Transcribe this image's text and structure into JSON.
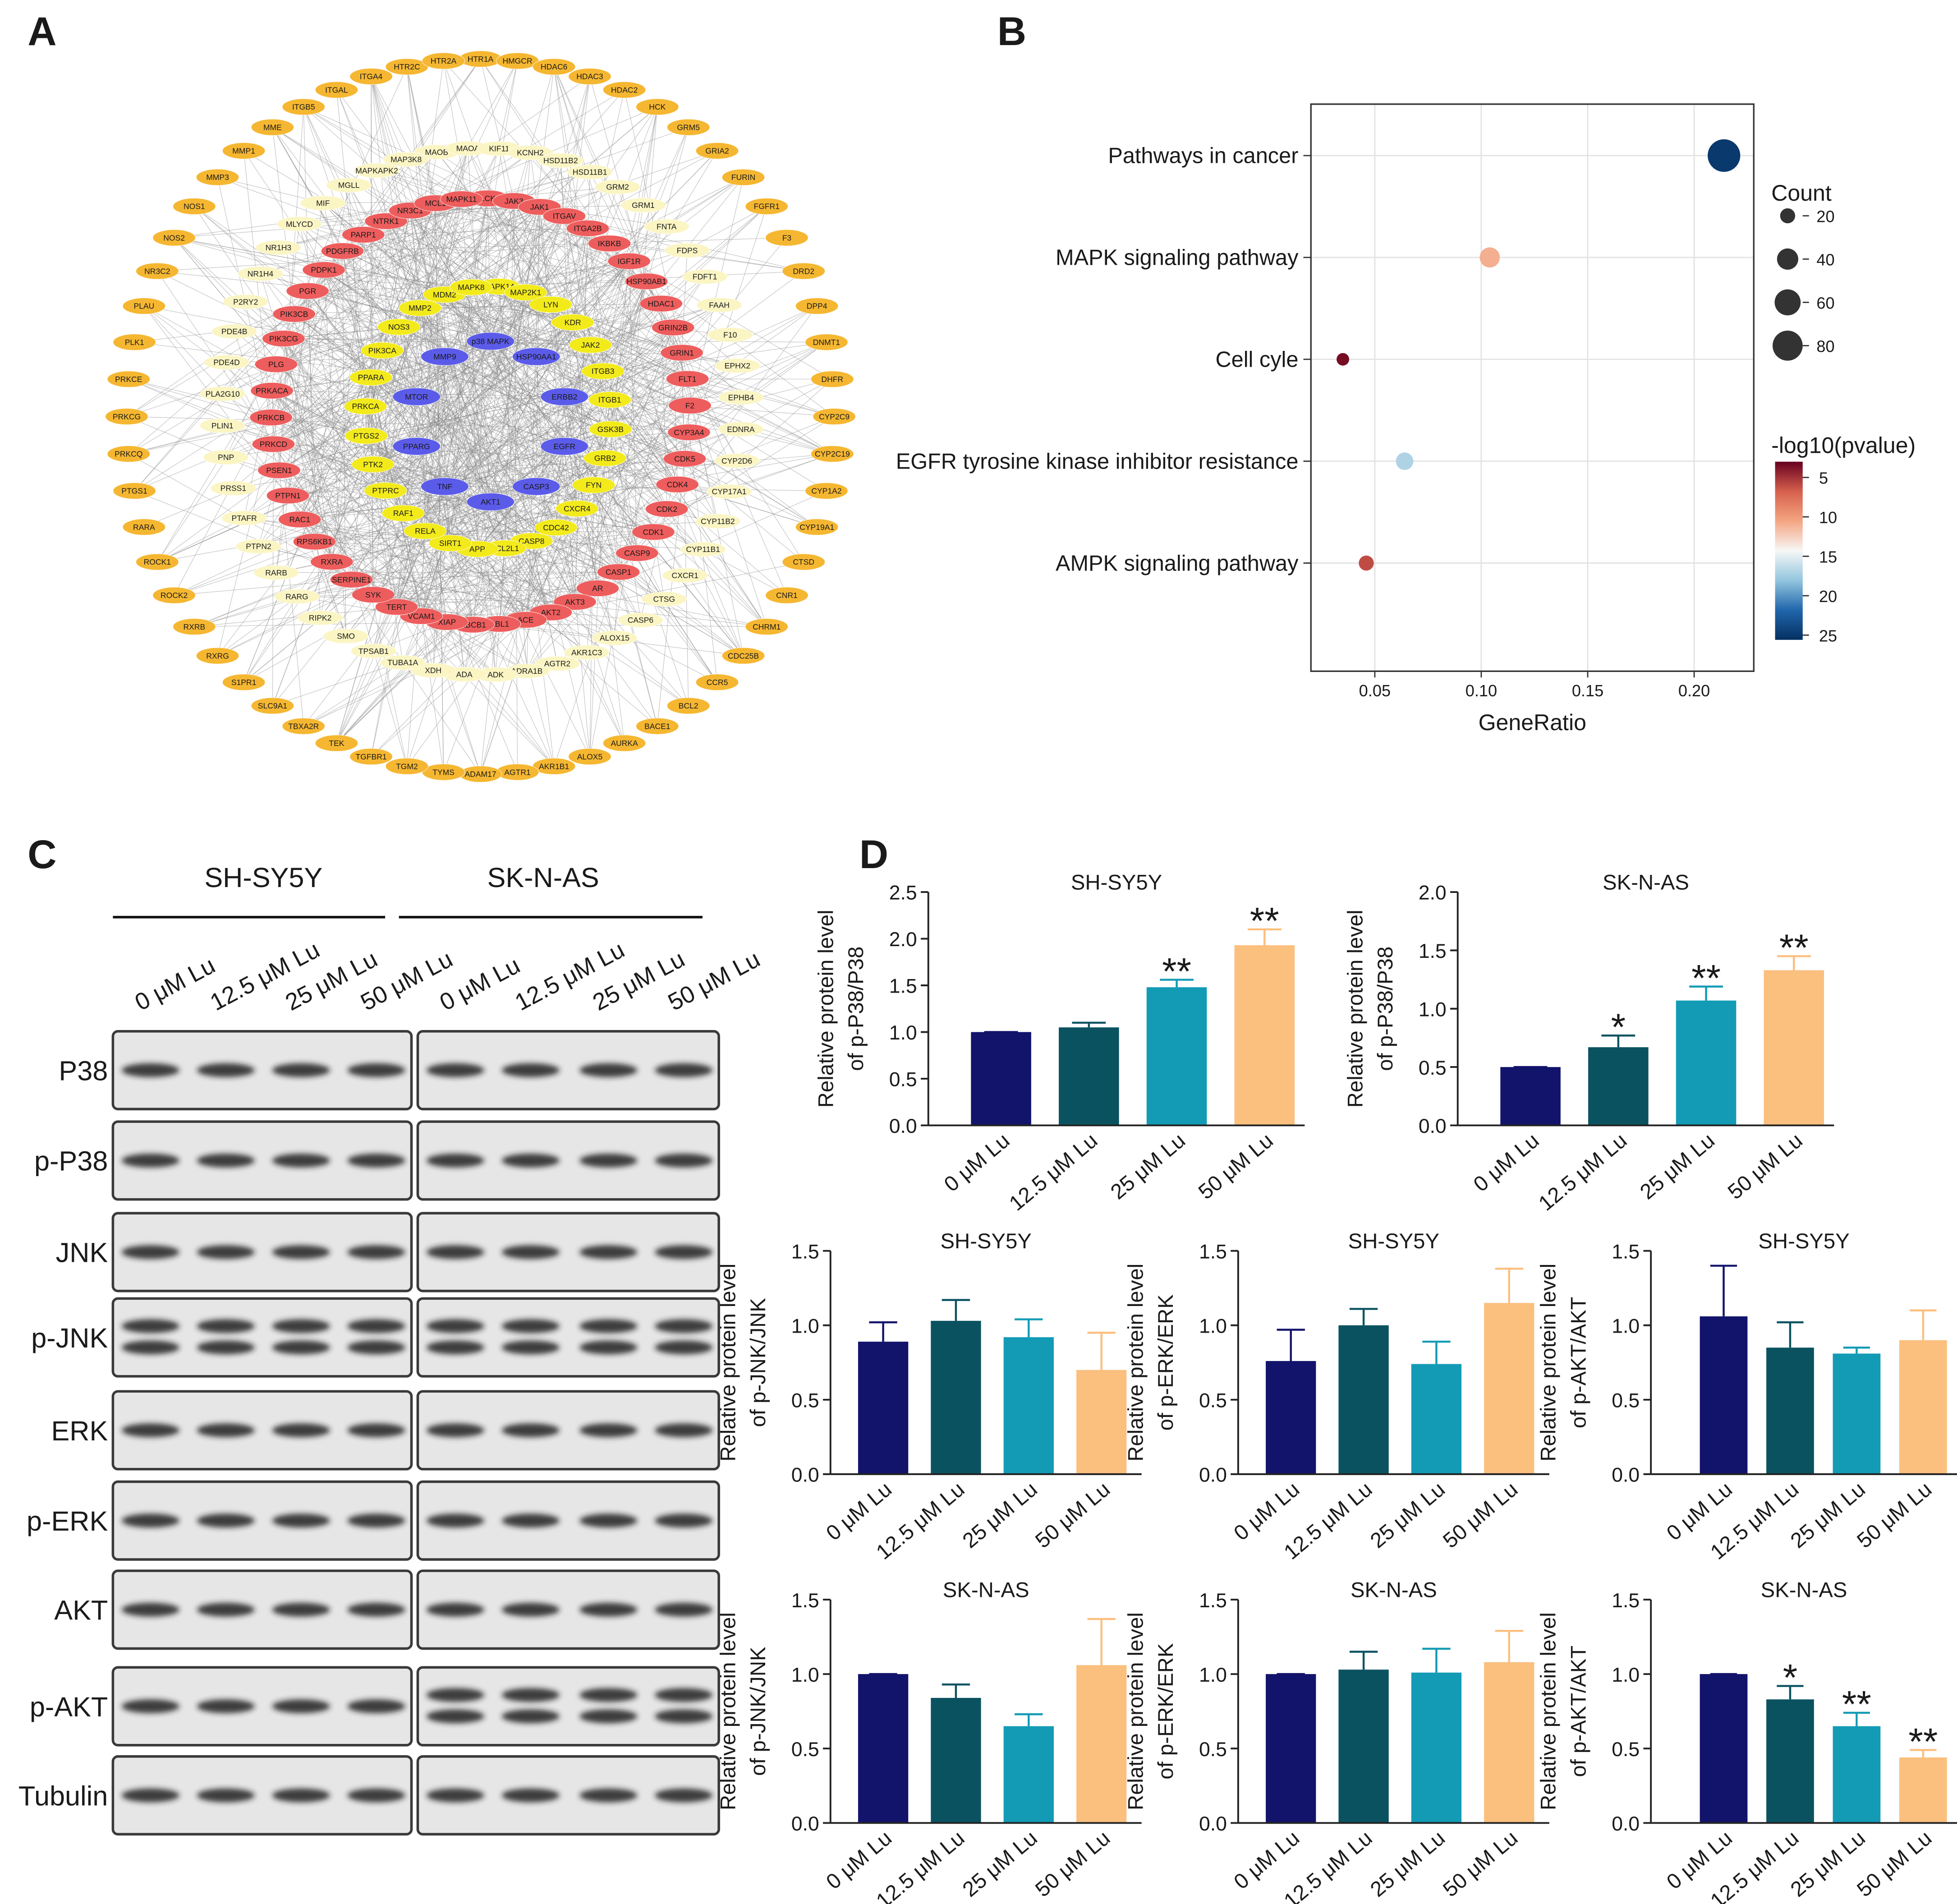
{
  "panel_labels": [
    "A",
    "B",
    "C",
    "D"
  ],
  "network": {
    "rings": [
      {
        "color": "#f5b731",
        "nodes": [
          "HTR1A",
          "HMGCR",
          "HDAC6",
          "HDAC3",
          "HDAC2",
          "HCK",
          "GRM5",
          "GRIA2",
          "FURIN",
          "FGFR1",
          "F3",
          "DRD2",
          "DPP4",
          "DNMT1",
          "DHFR",
          "CYP2C9",
          "CYP2C19",
          "CYP1A2",
          "CYP19A1",
          "CTSD",
          "CNR1",
          "CHRM1",
          "CDC25B",
          "CCR5",
          "BCL2",
          "BACE1",
          "AURKA",
          "ALOX5",
          "AKR1B1",
          "AGTR1",
          "ADAM17",
          "TYMS",
          "TGM2",
          "TGFBR1",
          "TEK",
          "TBXA2R",
          "SLC9A1",
          "S1PR1",
          "RXRG",
          "RXRB",
          "ROCK2",
          "ROCK1",
          "RARA",
          "PTGS1",
          "PRKCQ",
          "PRKCG",
          "PRKCE",
          "PLK1",
          "PLAU",
          "NR3C2",
          "NOS2",
          "NOS1",
          "MMP3",
          "MMP1",
          "MME",
          "ITGB5",
          "ITGAL",
          "ITGA4",
          "HTR2C",
          "HTR2A"
        ]
      },
      {
        "color": "#fbf5c4",
        "nodes": [
          "MAOB",
          "MAOA",
          "KIF11",
          "KCNH2",
          "HSD11B2",
          "HSD11B1",
          "GRM2",
          "GRM1",
          "FNTA",
          "FDPS",
          "FDFT1",
          "FAAH",
          "F10",
          "EPHX2",
          "EPHB4",
          "EDNRA",
          "CYP2D6",
          "CYP17A1",
          "CYP11B2",
          "CYP11B1",
          "CXCR1",
          "CTSG",
          "CASP6",
          "ALOX15",
          "AKR1C3",
          "AGTR2",
          "ADRA1B",
          "ADK",
          "ADA",
          "XDH",
          "TUBA1A",
          "TPSAB1",
          "SMO",
          "RIPK2",
          "RARG",
          "RARB",
          "PTPN2",
          "PTAFR",
          "PRSS1",
          "PNP",
          "PLIN1",
          "PLA2G10",
          "PDE4D",
          "PDE4B",
          "P2RY2",
          "NR1H4",
          "NR1H3",
          "MLYCD",
          "MIF",
          "MGLL",
          "MAPKAPK2",
          "MAP3K8"
        ]
      },
      {
        "color": "#ee5d5d",
        "nodes": [
          "LCK",
          "JAK3",
          "JAK1",
          "ITGAV",
          "ITGA2B",
          "IKBKB",
          "IGF1R",
          "HSP90AB1",
          "HDAC1",
          "GRIN2B",
          "GRIN1",
          "FLT1",
          "F2",
          "CYP3A4",
          "CDK5",
          "CDK4",
          "CDK2",
          "CDK1",
          "CASP9",
          "CASP1",
          "AR",
          "AKT3",
          "AKT2",
          "ACE",
          "ABL1",
          "ABCB1",
          "XIAP",
          "VCAM1",
          "TERT",
          "SYK",
          "SERPINE1",
          "RXRA",
          "RPS6KB1",
          "RAC1",
          "PTPN1",
          "PSEN1",
          "PRKCD",
          "PRKCB",
          "PRKACA",
          "PLG",
          "PIK3CG",
          "PIK3CB",
          "PGR",
          "PDPK1",
          "PDGFRB",
          "PARP1",
          "NTRK1",
          "NR3C1",
          "MCL1",
          "MAPK11"
        ]
      },
      {
        "color": "#f3ea1c",
        "nodes": [
          "MAPK14",
          "MAP2K1",
          "LYN",
          "KDR",
          "JAK2",
          "ITGB3",
          "ITGB1",
          "GSK3B",
          "GRB2",
          "FYN",
          "CXCR4",
          "CDC42",
          "CASP8",
          "BCL2L1",
          "APP",
          "SIRT1",
          "RELA",
          "RAF1",
          "PTPRC",
          "PTK2",
          "PTGS2",
          "PRKCA",
          "PPARA",
          "PIK3CA",
          "NOS3",
          "MMP2",
          "MDM2",
          "MAPK8"
        ]
      },
      {
        "color": "#5b5bea",
        "nodes": [
          "p38 MAPK",
          "HSP90AA1",
          "ERBB2",
          "EGFR",
          "CASP3",
          "AKT1",
          "TNF",
          "PPARG",
          "MTOR",
          "MMP9"
        ]
      }
    ]
  },
  "blot": {
    "groups": [
      "SH-SY5Y",
      "SK-N-AS"
    ],
    "lanes": [
      "0 μM Lu",
      "12.5 μM Lu",
      "25 μM Lu",
      "50 μM Lu"
    ],
    "rows": [
      "P38",
      "p-P38",
      "JNK",
      "p-JNK",
      "ERK",
      "p-ERK",
      "AKT",
      "p-AKT",
      "Tubulin"
    ]
  },
  "chart_data": [
    {
      "type": "bubble",
      "xlabel": "GeneRatio",
      "categories": [
        "Pathways in cancer",
        "MAPK signaling pathway",
        "Cell cyle",
        "EGFR tyrosine kinase inhibitor resistance",
        "AMPK signaling pathway"
      ],
      "x": [
        0.214,
        0.104,
        0.035,
        0.064,
        0.046
      ],
      "size": [
        94,
        36,
        14,
        27,
        20
      ],
      "color_values": [
        25,
        11,
        3.5,
        17,
        6
      ],
      "xlim": [
        0.02,
        0.228
      ],
      "xticks": [
        0.05,
        {
          "value": 0.1,
          "label": "0.10"
        },
        0.15,
        {
          "value": 0.2,
          "label": "0.20"
        }
      ],
      "grid": true,
      "size_legend": {
        "title": "Count",
        "values": [
          20,
          40,
          60,
          80
        ]
      },
      "colorbar": {
        "title": "-log10(pvalue)",
        "lim": [
          3,
          25.6
        ],
        "ticks": [
          5,
          10,
          15,
          20,
          25
        ],
        "colormap": [
          "#67001f",
          "#d6604d",
          "#f4a582",
          "#f7f7f7",
          "#92c5de",
          "#2166ac",
          "#053061"
        ]
      }
    },
    {
      "type": "bar",
      "title": "SH-SY5Y",
      "ylabel": [
        "Relative protein level",
        "of p-P38/P38"
      ],
      "categories": [
        "0 μM Lu",
        "12.5 μM Lu",
        "25 μM Lu",
        "50 μM Lu"
      ],
      "values": [
        1.0,
        1.05,
        1.48,
        1.93
      ],
      "errors": [
        0,
        0.05,
        0.08,
        0.17
      ],
      "colors": [
        "#12146b",
        "#0b5261",
        "#139bb5",
        "#fbbf7e"
      ],
      "ylim": [
        0,
        2.5
      ],
      "yticks": [
        {
          "value": 0,
          "label": "0.0"
        },
        0.5,
        {
          "value": 1,
          "label": "1.0"
        },
        1.5,
        {
          "value": 2,
          "label": "2.0"
        },
        2.5
      ],
      "annotations": [
        {
          "index": 2,
          "text": "**"
        },
        {
          "index": 3,
          "text": "**"
        }
      ]
    },
    {
      "type": "bar",
      "title": "SK-N-AS",
      "ylabel": [
        "Relative protein level",
        "of p-P38/P38"
      ],
      "categories": [
        "0 μM Lu",
        "12.5 μM Lu",
        "25 μM Lu",
        "50 μM Lu"
      ],
      "values": [
        0.5,
        0.67,
        1.07,
        1.33
      ],
      "errors": [
        0,
        0.1,
        0.12,
        0.12
      ],
      "colors": [
        "#12146b",
        "#0b5261",
        "#139bb5",
        "#fbbf7e"
      ],
      "ylim": [
        0,
        2.0
      ],
      "yticks": [
        {
          "value": 0,
          "label": "0.0"
        },
        0.5,
        {
          "value": 1,
          "label": "1.0"
        },
        1.5,
        {
          "value": 2,
          "label": "2.0"
        }
      ],
      "annotations": [
        {
          "index": 1,
          "text": "*"
        },
        {
          "index": 2,
          "text": "**"
        },
        {
          "index": 3,
          "text": "**"
        }
      ]
    },
    {
      "type": "bar",
      "title": "SH-SY5Y",
      "ylabel": [
        "Relative protein level",
        "of p-JNK/JNK"
      ],
      "categories": [
        "0 μM Lu",
        "12.5 μM Lu",
        "25 μM Lu",
        "50 μM Lu"
      ],
      "values": [
        0.89,
        1.03,
        0.92,
        0.7
      ],
      "errors": [
        0.13,
        0.14,
        0.12,
        0.25
      ],
      "colors": [
        "#12146b",
        "#0b5261",
        "#139bb5",
        "#fbbf7e"
      ],
      "ylim": [
        0,
        1.5
      ],
      "yticks": [
        {
          "value": 0,
          "label": "0.0"
        },
        0.5,
        {
          "value": 1,
          "label": "1.0"
        },
        1.5
      ]
    },
    {
      "type": "bar",
      "title": "SH-SY5Y",
      "ylabel": [
        "Relative protein level",
        "of p-ERK/ERK"
      ],
      "categories": [
        "0 μM Lu",
        "12.5 μM Lu",
        "25 μM Lu",
        "50 μM Lu"
      ],
      "values": [
        0.76,
        1.0,
        0.74,
        1.15
      ],
      "errors": [
        0.21,
        0.11,
        0.15,
        0.23
      ],
      "colors": [
        "#12146b",
        "#0b5261",
        "#139bb5",
        "#fbbf7e"
      ],
      "ylim": [
        0,
        1.5
      ],
      "yticks": [
        {
          "value": 0,
          "label": "0.0"
        },
        0.5,
        {
          "value": 1,
          "label": "1.0"
        },
        1.5
      ]
    },
    {
      "type": "bar",
      "title": "SH-SY5Y",
      "ylabel": [
        "Relative protein level",
        "of p-AKT/AKT"
      ],
      "categories": [
        "0 μM Lu",
        "12.5 μM Lu",
        "25 μM Lu",
        "50 μM Lu"
      ],
      "values": [
        1.06,
        0.85,
        0.81,
        0.9
      ],
      "errors": [
        0.34,
        0.17,
        0.04,
        0.2
      ],
      "colors": [
        "#12146b",
        "#0b5261",
        "#139bb5",
        "#fbbf7e"
      ],
      "ylim": [
        0,
        1.5
      ],
      "yticks": [
        {
          "value": 0,
          "label": "0.0"
        },
        0.5,
        {
          "value": 1,
          "label": "1.0"
        },
        1.5
      ]
    },
    {
      "type": "bar",
      "title": "SK-N-AS",
      "ylabel": [
        "Relative protein level",
        "of p-JNK/JNK"
      ],
      "categories": [
        "0 μM Lu",
        "12.5 μM Lu",
        "25 μM Lu",
        "50 μM Lu"
      ],
      "values": [
        1.0,
        0.84,
        0.65,
        1.06
      ],
      "errors": [
        0,
        0.09,
        0.08,
        0.31
      ],
      "colors": [
        "#12146b",
        "#0b5261",
        "#139bb5",
        "#fbbf7e"
      ],
      "ylim": [
        0,
        1.5
      ],
      "yticks": [
        {
          "value": 0,
          "label": "0.0"
        },
        0.5,
        {
          "value": 1,
          "label": "1.0"
        },
        1.5
      ]
    },
    {
      "type": "bar",
      "title": "SK-N-AS",
      "ylabel": [
        "Relative protein level",
        "of p-ERK/ERK"
      ],
      "categories": [
        "0 μM Lu",
        "12.5 μM Lu",
        "25 μM Lu",
        "50 μM Lu"
      ],
      "values": [
        1.0,
        1.03,
        1.01,
        1.08
      ],
      "errors": [
        0,
        0.12,
        0.16,
        0.21
      ],
      "colors": [
        "#12146b",
        "#0b5261",
        "#139bb5",
        "#fbbf7e"
      ],
      "ylim": [
        0,
        1.5
      ],
      "yticks": [
        {
          "value": 0,
          "label": "0.0"
        },
        0.5,
        {
          "value": 1,
          "label": "1.0"
        },
        1.5
      ]
    },
    {
      "type": "bar",
      "title": "SK-N-AS",
      "ylabel": [
        "Relative protein level",
        "of p-AKT/AKT"
      ],
      "categories": [
        "0 μM Lu",
        "12.5 μM Lu",
        "25 μM Lu",
        "50 μM Lu"
      ],
      "values": [
        1.0,
        0.83,
        0.65,
        0.44
      ],
      "errors": [
        0,
        0.09,
        0.09,
        0.05
      ],
      "colors": [
        "#12146b",
        "#0b5261",
        "#139bb5",
        "#fbbf7e"
      ],
      "ylim": [
        0,
        1.5
      ],
      "yticks": [
        {
          "value": 0,
          "label": "0.0"
        },
        0.5,
        {
          "value": 1,
          "label": "1.0"
        },
        1.5
      ],
      "annotations": [
        {
          "index": 1,
          "text": "*"
        },
        {
          "index": 2,
          "text": "**"
        },
        {
          "index": 3,
          "text": "**"
        }
      ]
    }
  ]
}
